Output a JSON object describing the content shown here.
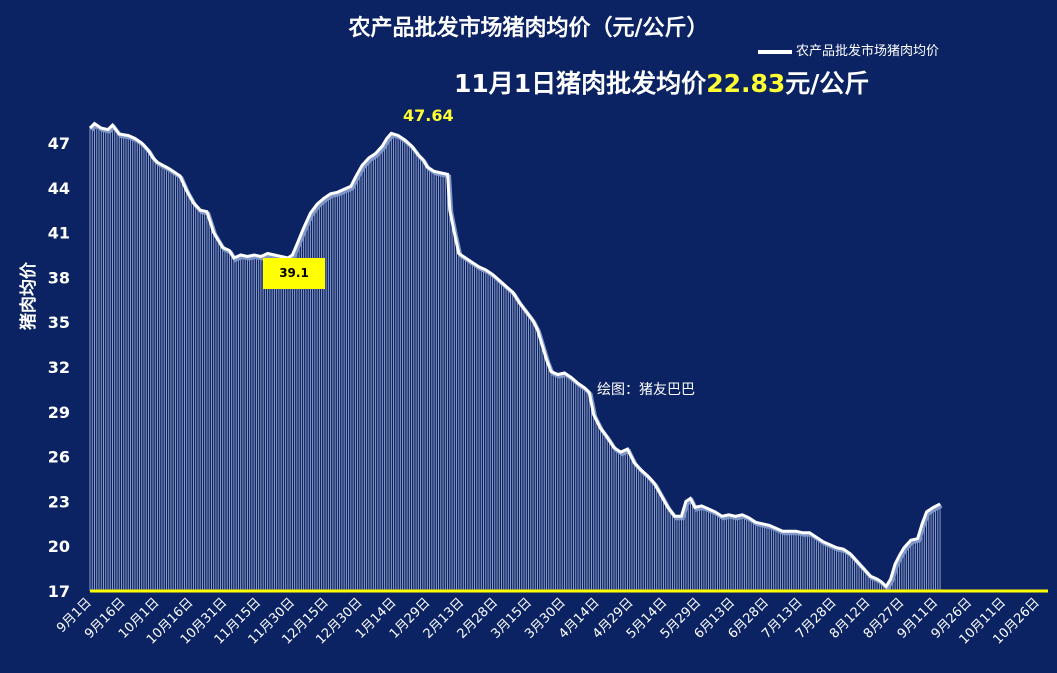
{
  "title": "农产品批发市场猪肉均价（元/公斤）",
  "subtitle": {
    "prefix": "11月1日猪肉批发均价",
    "value": "22.83",
    "suffix": "元/公斤"
  },
  "legend_label": "农产品批发市场猪肉均价",
  "watermark": "绘图：猪友巴巴",
  "colors": {
    "background": "#0b2363",
    "line": "#ffffff",
    "highlight": "#ffff33",
    "axis": "#ffff00"
  },
  "chart_data": {
    "type": "area",
    "title": "农产品批发市场猪肉均价（元/公斤）",
    "ylabel": "猪肉均价",
    "xlabel": "",
    "ylim": [
      17,
      48.5
    ],
    "yticks": [
      17,
      20,
      23,
      26,
      29,
      32,
      35,
      38,
      41,
      44,
      47
    ],
    "xticks": [
      "9月1日",
      "9月16日",
      "10月1日",
      "10月16日",
      "10月31日",
      "11月15日",
      "11月30日",
      "12月15日",
      "12月30日",
      "1月14日",
      "1月29日",
      "2月13日",
      "2月28日",
      "3月15日",
      "3月30日",
      "4月14日",
      "4月29日",
      "5月14日",
      "5月29日",
      "6月13日",
      "6月28日",
      "7月13日",
      "7月28日",
      "8月12日",
      "8月27日",
      "9月11日",
      "9月26日",
      "10月11日",
      "10月26日"
    ],
    "x_range": [
      0,
      426
    ],
    "legend": "top-right",
    "grid": false,
    "points": [
      [
        0,
        48.0
      ],
      [
        2,
        48.3
      ],
      [
        5,
        48.0
      ],
      [
        8,
        47.9
      ],
      [
        10,
        48.2
      ],
      [
        13,
        47.6
      ],
      [
        17,
        47.5
      ],
      [
        20,
        47.3
      ],
      [
        23,
        47.0
      ],
      [
        26,
        46.5
      ],
      [
        28,
        46.0
      ],
      [
        30,
        45.7
      ],
      [
        35,
        45.3
      ],
      [
        40,
        44.8
      ],
      [
        43,
        43.8
      ],
      [
        46,
        43.0
      ],
      [
        49,
        42.5
      ],
      [
        52,
        42.4
      ],
      [
        55,
        41.0
      ],
      [
        59,
        40.0
      ],
      [
        62,
        39.8
      ],
      [
        64,
        39.3
      ],
      [
        67,
        39.5
      ],
      [
        70,
        39.4
      ],
      [
        73,
        39.5
      ],
      [
        76,
        39.4
      ],
      [
        79,
        39.6
      ],
      [
        82,
        39.5
      ],
      [
        85,
        39.4
      ],
      [
        88,
        39.3
      ],
      [
        90,
        39.5
      ],
      [
        92,
        40.2
      ],
      [
        95,
        41.3
      ],
      [
        98,
        42.3
      ],
      [
        101,
        42.9
      ],
      [
        104,
        43.3
      ],
      [
        107,
        43.6
      ],
      [
        110,
        43.7
      ],
      [
        113,
        43.9
      ],
      [
        116,
        44.1
      ],
      [
        118,
        44.7
      ],
      [
        121,
        45.5
      ],
      [
        124,
        46.0
      ],
      [
        127,
        46.3
      ],
      [
        130,
        46.8
      ],
      [
        132,
        47.3
      ],
      [
        134,
        47.64
      ],
      [
        137,
        47.5
      ],
      [
        140,
        47.2
      ],
      [
        143,
        46.8
      ],
      [
        146,
        46.2
      ],
      [
        148,
        45.9
      ],
      [
        150,
        45.4
      ],
      [
        153,
        45.1
      ],
      [
        156,
        45.0
      ],
      [
        159,
        44.9
      ],
      [
        160,
        42.5
      ],
      [
        162,
        41.0
      ],
      [
        164,
        39.6
      ],
      [
        167,
        39.3
      ],
      [
        170,
        39.0
      ],
      [
        173,
        38.7
      ],
      [
        176,
        38.5
      ],
      [
        179,
        38.2
      ],
      [
        182,
        37.8
      ],
      [
        185,
        37.4
      ],
      [
        188,
        37.0
      ],
      [
        191,
        36.3
      ],
      [
        194,
        35.7
      ],
      [
        197,
        35.1
      ],
      [
        199,
        34.5
      ],
      [
        201,
        33.5
      ],
      [
        203,
        32.5
      ],
      [
        205,
        31.7
      ],
      [
        208,
        31.5
      ],
      [
        211,
        31.6
      ],
      [
        214,
        31.3
      ],
      [
        217,
        30.9
      ],
      [
        220,
        30.6
      ],
      [
        222,
        30.3
      ],
      [
        224,
        28.8
      ],
      [
        227,
        27.9
      ],
      [
        230,
        27.3
      ],
      [
        233,
        26.6
      ],
      [
        236,
        26.3
      ],
      [
        239,
        26.5
      ],
      [
        242,
        25.6
      ],
      [
        245,
        25.1
      ],
      [
        248,
        24.7
      ],
      [
        251,
        24.2
      ],
      [
        254,
        23.4
      ],
      [
        257,
        22.6
      ],
      [
        260,
        22.0
      ],
      [
        263,
        22.0
      ],
      [
        265,
        23.0
      ],
      [
        267,
        23.2
      ],
      [
        269,
        22.6
      ],
      [
        272,
        22.7
      ],
      [
        275,
        22.5
      ],
      [
        278,
        22.3
      ],
      [
        281,
        22.0
      ],
      [
        284,
        22.1
      ],
      [
        287,
        22.0
      ],
      [
        290,
        22.1
      ],
      [
        293,
        21.9
      ],
      [
        296,
        21.6
      ],
      [
        299,
        21.5
      ],
      [
        302,
        21.4
      ],
      [
        305,
        21.2
      ],
      [
        308,
        21.0
      ],
      [
        311,
        21.0
      ],
      [
        314,
        21.0
      ],
      [
        317,
        20.9
      ],
      [
        320,
        20.9
      ],
      [
        323,
        20.6
      ],
      [
        326,
        20.3
      ],
      [
        329,
        20.1
      ],
      [
        332,
        19.9
      ],
      [
        335,
        19.8
      ],
      [
        338,
        19.5
      ],
      [
        341,
        19.0
      ],
      [
        344,
        18.5
      ],
      [
        347,
        18.0
      ],
      [
        350,
        17.8
      ],
      [
        352,
        17.6
      ],
      [
        354,
        17.3
      ],
      [
        356,
        17.8
      ],
      [
        358,
        18.8
      ],
      [
        360,
        19.4
      ],
      [
        362,
        19.9
      ],
      [
        365,
        20.4
      ],
      [
        368,
        20.5
      ],
      [
        370,
        21.5
      ],
      [
        372,
        22.3
      ],
      [
        375,
        22.6
      ],
      [
        378,
        22.83
      ]
    ],
    "annotations": [
      {
        "text": "47.64",
        "style": "yellow-text"
      },
      {
        "text": "39.1",
        "style": "yellow-box"
      }
    ]
  }
}
